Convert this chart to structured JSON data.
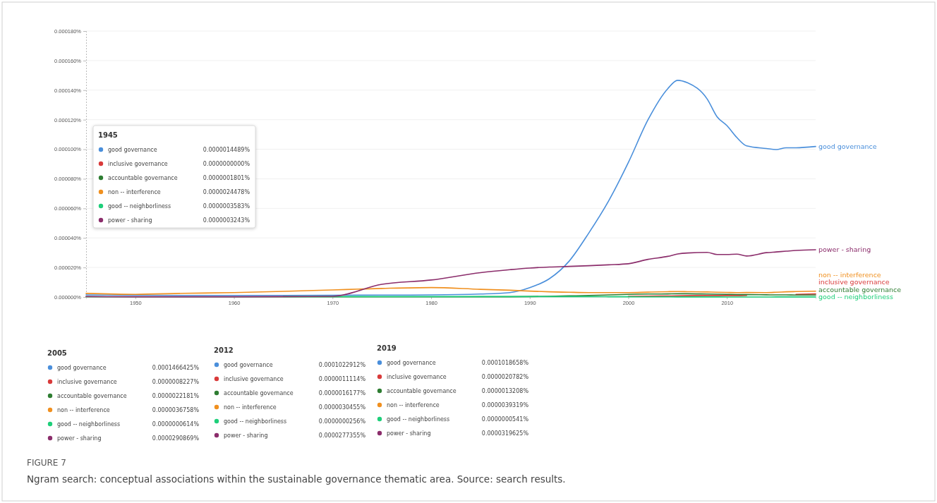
{
  "chart_data": {
    "type": "line",
    "title": "FIGURE 7",
    "subtitle": "Ngram search: conceptual associations within the sustainable governance thematic area. Source: search results.",
    "xlim": [
      1945,
      2019
    ],
    "xticks": [
      1950,
      1960,
      1970,
      1980,
      1990,
      2000,
      2010
    ],
    "ylim": [
      0,
      0.00018
    ],
    "yticks": [
      {
        "value": 0,
        "label": "0.000000%"
      },
      {
        "value": 2e-05,
        "label": "0.000020%"
      },
      {
        "value": 4e-05,
        "label": "0.000040%"
      },
      {
        "value": 6e-05,
        "label": "0.000060%"
      },
      {
        "value": 8e-05,
        "label": "0.000080%"
      },
      {
        "value": 0.0001,
        "label": "0.000100%"
      },
      {
        "value": 0.00012,
        "label": "0.000120%"
      },
      {
        "value": 0.00014,
        "label": "0.000140%"
      },
      {
        "value": 0.00016,
        "label": "0.000160%"
      },
      {
        "value": 0.00018,
        "label": "0.000180%"
      }
    ],
    "grid": "y",
    "x": [
      1945,
      1950,
      1955,
      1960,
      1965,
      1970,
      1975,
      1980,
      1985,
      1988,
      1990,
      1992,
      1994,
      1996,
      1998,
      2000,
      2002,
      2004,
      2005,
      2006,
      2008,
      2009,
      2010,
      2011,
      2012,
      2014,
      2015,
      2016,
      2017,
      2019
    ],
    "series": [
      {
        "name": "good governance",
        "color": "#4a8fdb",
        "values": [
          1.4489e-06,
          1.2e-06,
          1.1e-06,
          1.1e-06,
          1.1e-06,
          1.2e-06,
          1.3e-06,
          1.4e-06,
          2e-06,
          3e-06,
          6.3e-06,
          1.24e-05,
          2.43e-05,
          4.34e-05,
          6.5e-05,
          9.1e-05,
          0.00012,
          0.000141,
          0.0001466425,
          0.000145,
          0.000134,
          0.000122,
          0.000116,
          0.000108,
          0.0001022912,
          0.0001005,
          9.98e-05,
          0.000101,
          0.000101,
          0.0001018658
        ]
      },
      {
        "name": "inclusive governance",
        "color": "#d93a3a",
        "values": [
          null,
          null,
          null,
          null,
          null,
          null,
          null,
          null,
          null,
          null,
          null,
          null,
          null,
          null,
          null,
          5e-07,
          6e-07,
          7e-07,
          8.227e-07,
          9e-07,
          1e-06,
          1e-06,
          1e-06,
          1e-06,
          1.1114e-06,
          null,
          null,
          null,
          1.8e-06,
          2.0782e-06
        ]
      },
      {
        "name": "accountable governance",
        "color": "#2e7d32",
        "values": [
          1.801e-07,
          1e-07,
          1e-07,
          1e-07,
          1e-07,
          1e-07,
          1e-07,
          1e-07,
          2e-07,
          2e-07,
          3e-07,
          5e-07,
          8e-07,
          1e-06,
          1.4e-06,
          1.8e-06,
          2e-06,
          2.1e-06,
          2.2181e-06,
          2.2e-06,
          2e-06,
          1.9e-06,
          1.8e-06,
          1.7e-06,
          1.6177e-06,
          1.5e-06,
          1.4e-06,
          1.4e-06,
          1.3e-06,
          1.3208e-06
        ]
      },
      {
        "name": "non -- interference",
        "color": "#f0901f",
        "values": [
          2.4478e-06,
          1.8e-06,
          2.5e-06,
          3e-06,
          3.8e-06,
          4.8e-06,
          5.8e-06,
          6.4e-06,
          5.2e-06,
          4.6e-06,
          4e-06,
          3.5e-06,
          3.2e-06,
          3e-06,
          3e-06,
          3e-06,
          3.3e-06,
          3.6e-06,
          3.6758e-06,
          3.6e-06,
          3.4e-06,
          3.2e-06,
          3.1e-06,
          3e-06,
          3.0455e-06,
          3e-06,
          3.2e-06,
          3.5e-06,
          3.7e-06,
          3.9319e-06
        ]
      },
      {
        "name": "good -- neighborliness",
        "color": "#1ecf7a",
        "values": [
          null,
          null,
          null,
          null,
          3e-07,
          3e-07,
          3e-07,
          3e-07,
          3e-07,
          3e-07,
          3e-07,
          3e-07,
          3e-07,
          3e-07,
          2e-07,
          2e-07,
          1e-07,
          1e-07,
          6.14e-08,
          6.14e-08,
          5e-08,
          4e-08,
          3e-08,
          3e-08,
          2.56e-08,
          3e-08,
          4e-08,
          5e-08,
          5e-08,
          5.41e-08
        ]
      },
      {
        "name": "power - sharing",
        "color": "#8b2d6b",
        "values": [
          3.243e-07,
          2e-07,
          2e-07,
          2e-07,
          3e-07,
          5e-07,
          8.6e-06,
          1.15e-05,
          1.65e-05,
          1.85e-05,
          1.96e-05,
          2.03e-05,
          2.07e-05,
          2.12e-05,
          2.18e-05,
          2.25e-05,
          2.55e-05,
          2.75e-05,
          2.90869e-05,
          2.98e-05,
          3.02e-05,
          2.88e-05,
          2.88e-05,
          2.9e-05,
          2.77355e-05,
          3e-05,
          3.05e-05,
          3.1e-05,
          3.15e-05,
          3.19625e-05
        ]
      }
    ],
    "annotations": [
      "1945",
      "good governance",
      "0.0000014489%",
      "inclusive governance",
      "0.0000000000%",
      "accountable governance",
      "0.0000001801%",
      "non -- interference",
      "0.0000024478%",
      "good -- neighborliness",
      "0.0000003583%",
      "power - sharing",
      "0.0000003243%",
      "2005",
      "good governance",
      "0.0001466425%",
      "inclusive governance",
      "0.0000008227%",
      "accountable governance",
      "0.0000022181%",
      "non -- interference",
      "0.0000036758%",
      "good -- neighborliness",
      "0.0000000614%",
      "power - sharing",
      "0.0000290869%",
      "2012",
      "good governance",
      "0.0001022912%",
      "inclusive governance",
      "0.0000011114%",
      "accountable governance",
      "0.0000016177%",
      "non -- interference",
      "0.0000030455%",
      "good -- neighborliness",
      "0.0000000256%",
      "power - sharing",
      "0.0000277355%",
      "2019",
      "good governance",
      "0.0001018658%",
      "inclusive governance",
      "0.0000020782%",
      "accountable governance",
      "0.0000013208%",
      "non -- interference",
      "0.0000039319%",
      "good -- neighborliness",
      "0.0000000541%",
      "power - sharing",
      "0.0000319625%"
    ]
  }
}
